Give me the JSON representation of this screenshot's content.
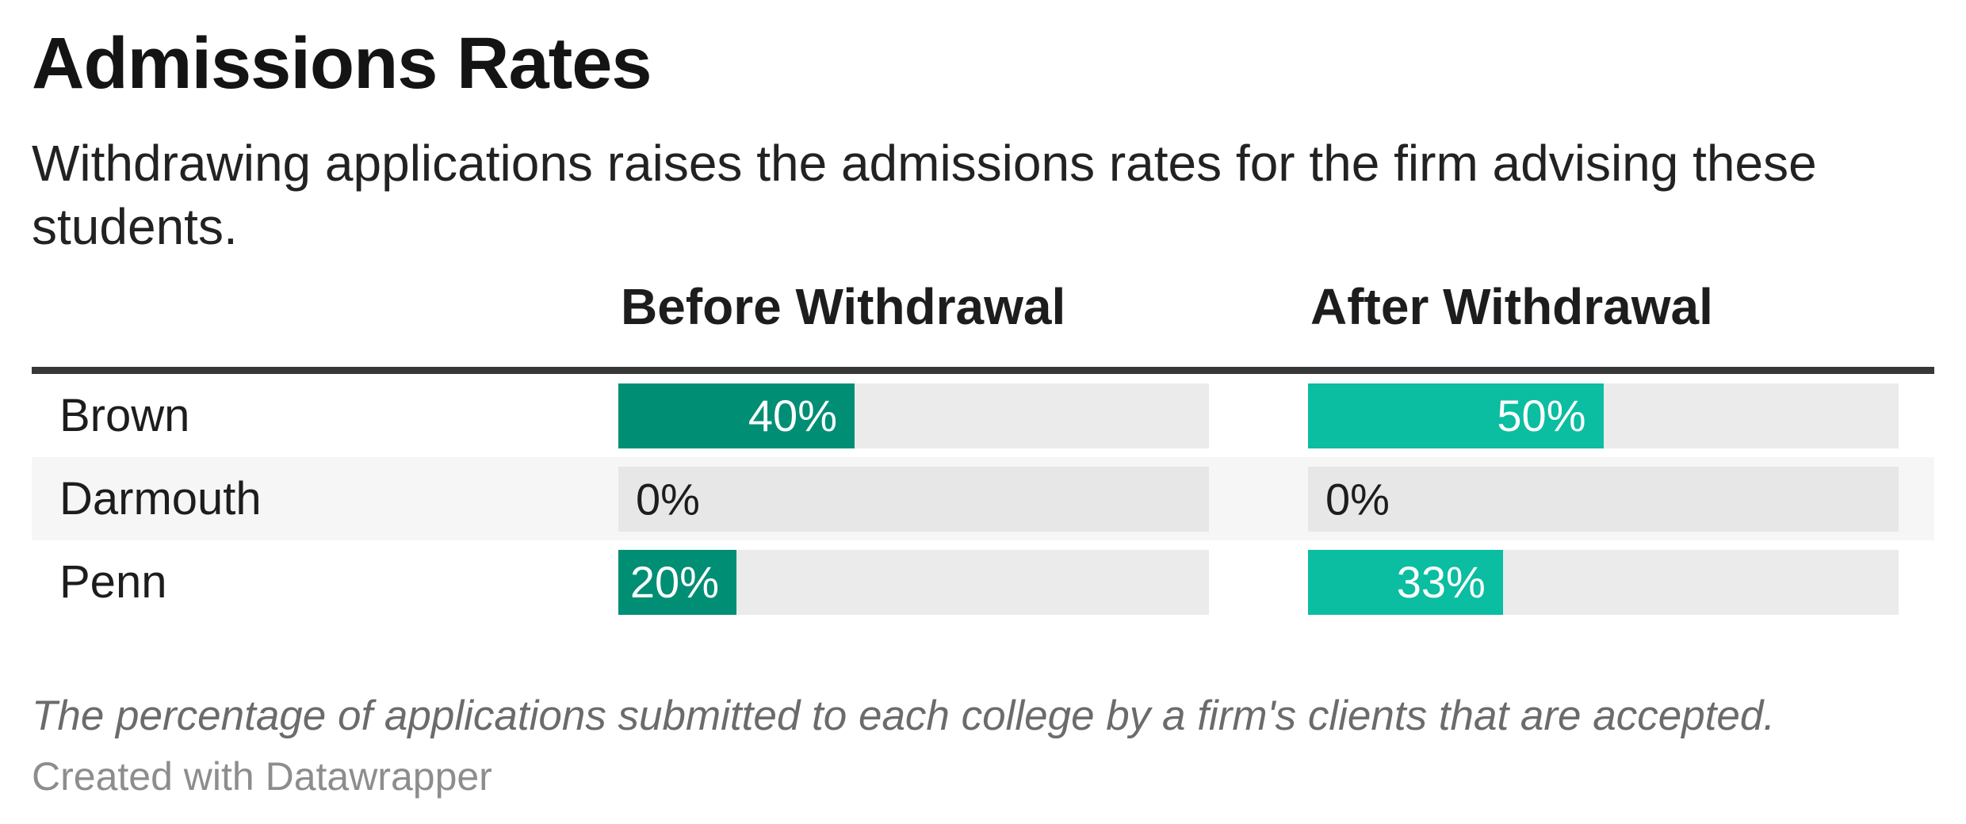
{
  "title": "Admissions Rates",
  "subtitle": "Withdrawing applications raises the admissions rates for the firm advising these students.",
  "columns": {
    "before": "Before Withdrawal",
    "after": "After Withdrawal"
  },
  "rows": [
    {
      "label": "Brown",
      "before": {
        "pct": 40,
        "label": "40%"
      },
      "after": {
        "pct": 50,
        "label": "50%"
      }
    },
    {
      "label": "Darmouth",
      "before": {
        "pct": 0,
        "label": "0%"
      },
      "after": {
        "pct": 0,
        "label": "0%"
      }
    },
    {
      "label": "Penn",
      "before": {
        "pct": 20,
        "label": "20%"
      },
      "after": {
        "pct": 33,
        "label": "33%"
      }
    }
  ],
  "footer": {
    "note": "The percentage of applications submitted to each college by a firm's clients that are accepted.",
    "credit": "Created with Datawrapper"
  },
  "colors": {
    "bar_before": "#008E74",
    "bar_after": "#0BBDA1",
    "track": "#EBEBEB",
    "row_stripe": "#F6F6F6",
    "header_rule": "#383838",
    "footnote_text": "#6B6B6B",
    "credit_text": "#8D8D8D"
  },
  "chart_data": {
    "type": "bar",
    "orientation": "horizontal",
    "categories": [
      "Brown",
      "Darmouth",
      "Penn"
    ],
    "series": [
      {
        "name": "Before Withdrawal",
        "values": [
          40,
          0,
          20
        ]
      },
      {
        "name": "After Withdrawal",
        "values": [
          50,
          0,
          33
        ]
      }
    ],
    "title": "Admissions Rates",
    "subtitle": "Withdrawing applications raises the admissions rates for the firm advising these students.",
    "xlabel": "",
    "ylabel": "",
    "xlim": [
      0,
      100
    ],
    "value_format": "percent",
    "grid": false,
    "legend_position": "column-headers",
    "note": "The percentage of applications submitted to each college by a firm's clients that are accepted.",
    "credit": "Created with Datawrapper"
  }
}
